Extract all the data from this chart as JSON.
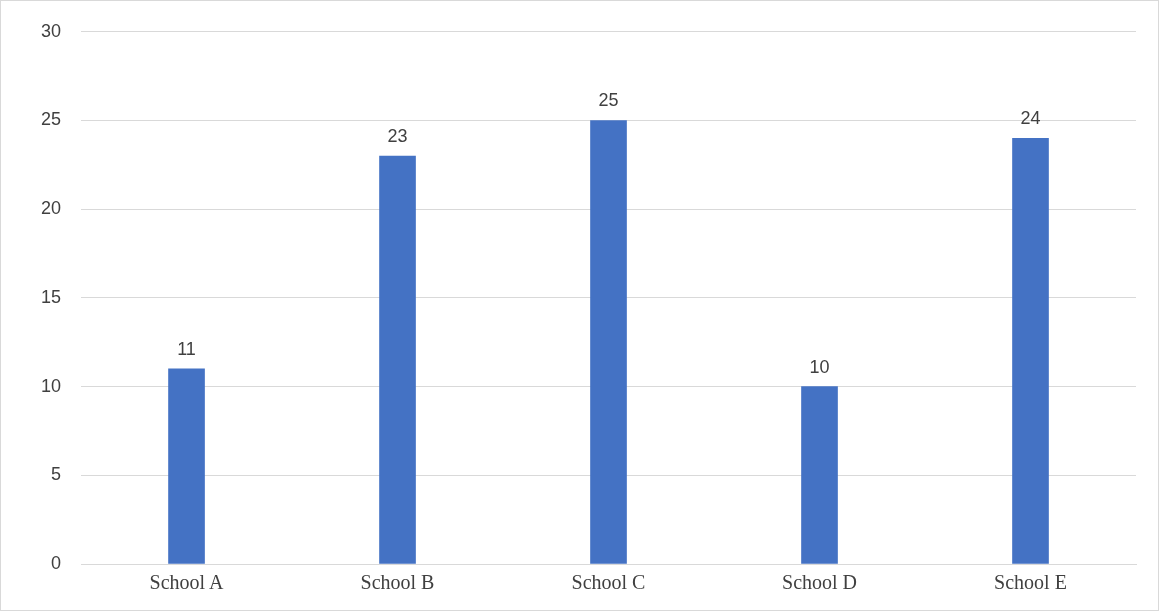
{
  "chart_data": {
    "type": "bar",
    "categories": [
      "School A",
      "School B",
      "School C",
      "School D",
      "School E"
    ],
    "values": [
      11,
      23,
      25,
      10,
      24
    ],
    "color": "#4472c4",
    "ylim": [
      0,
      30
    ],
    "yticks": [
      0,
      5,
      10,
      15,
      20,
      25,
      30
    ],
    "grid": "y",
    "data_labels": true,
    "legend": false
  }
}
